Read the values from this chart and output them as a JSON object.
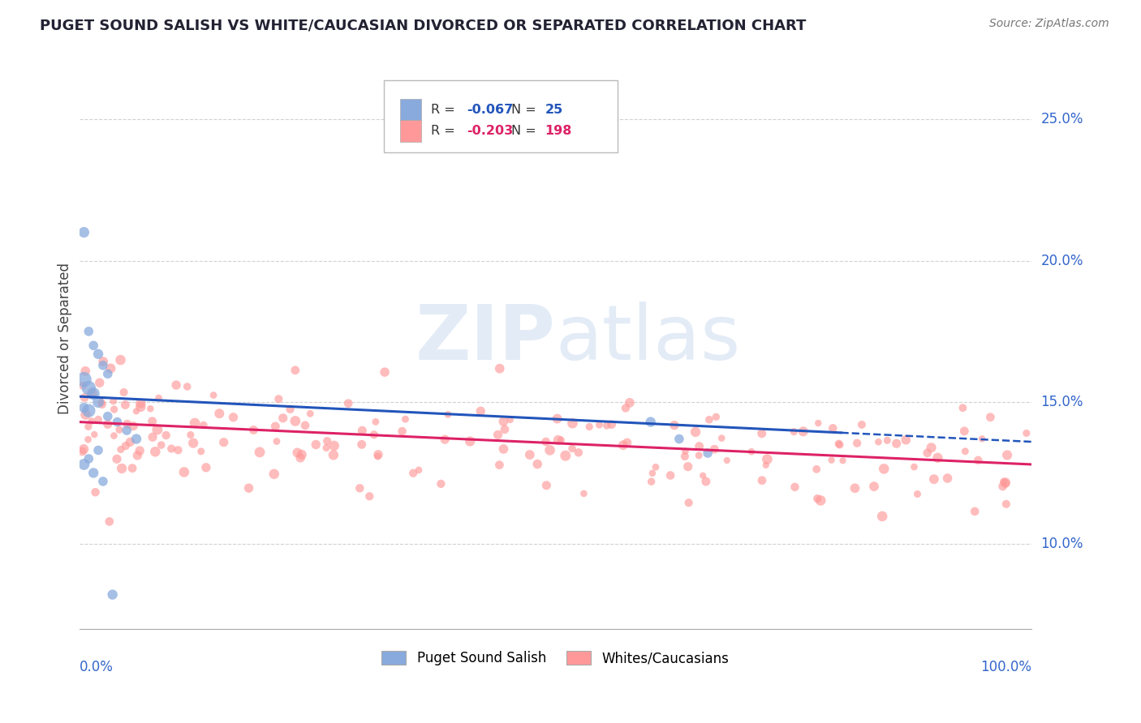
{
  "title": "PUGET SOUND SALISH VS WHITE/CAUCASIAN DIVORCED OR SEPARATED CORRELATION CHART",
  "source": "Source: ZipAtlas.com",
  "ylabel": "Divorced or Separated",
  "legend_label1": "Puget Sound Salish",
  "legend_label2": "Whites/Caucasians",
  "R1": -0.067,
  "N1": 25,
  "R2": -0.203,
  "N2": 198,
  "xlim": [
    0.0,
    1.0
  ],
  "ylim": [
    0.07,
    0.275
  ],
  "yticks": [
    0.1,
    0.15,
    0.2,
    0.25
  ],
  "ytick_labels": [
    "10.0%",
    "15.0%",
    "20.0%",
    "25.0%"
  ],
  "grid_color": "#cccccc",
  "blue_color": "#88aadd",
  "pink_color": "#ff9999",
  "blue_line_color": "#2255bb",
  "pink_line_color": "#dd2266",
  "background_color": "#ffffff",
  "title_color": "#222233",
  "axis_label_color": "#3366cc",
  "blue_trend_start": 0.152,
  "blue_trend_end": 0.136,
  "pink_trend_start": 0.143,
  "pink_trend_end": 0.128
}
